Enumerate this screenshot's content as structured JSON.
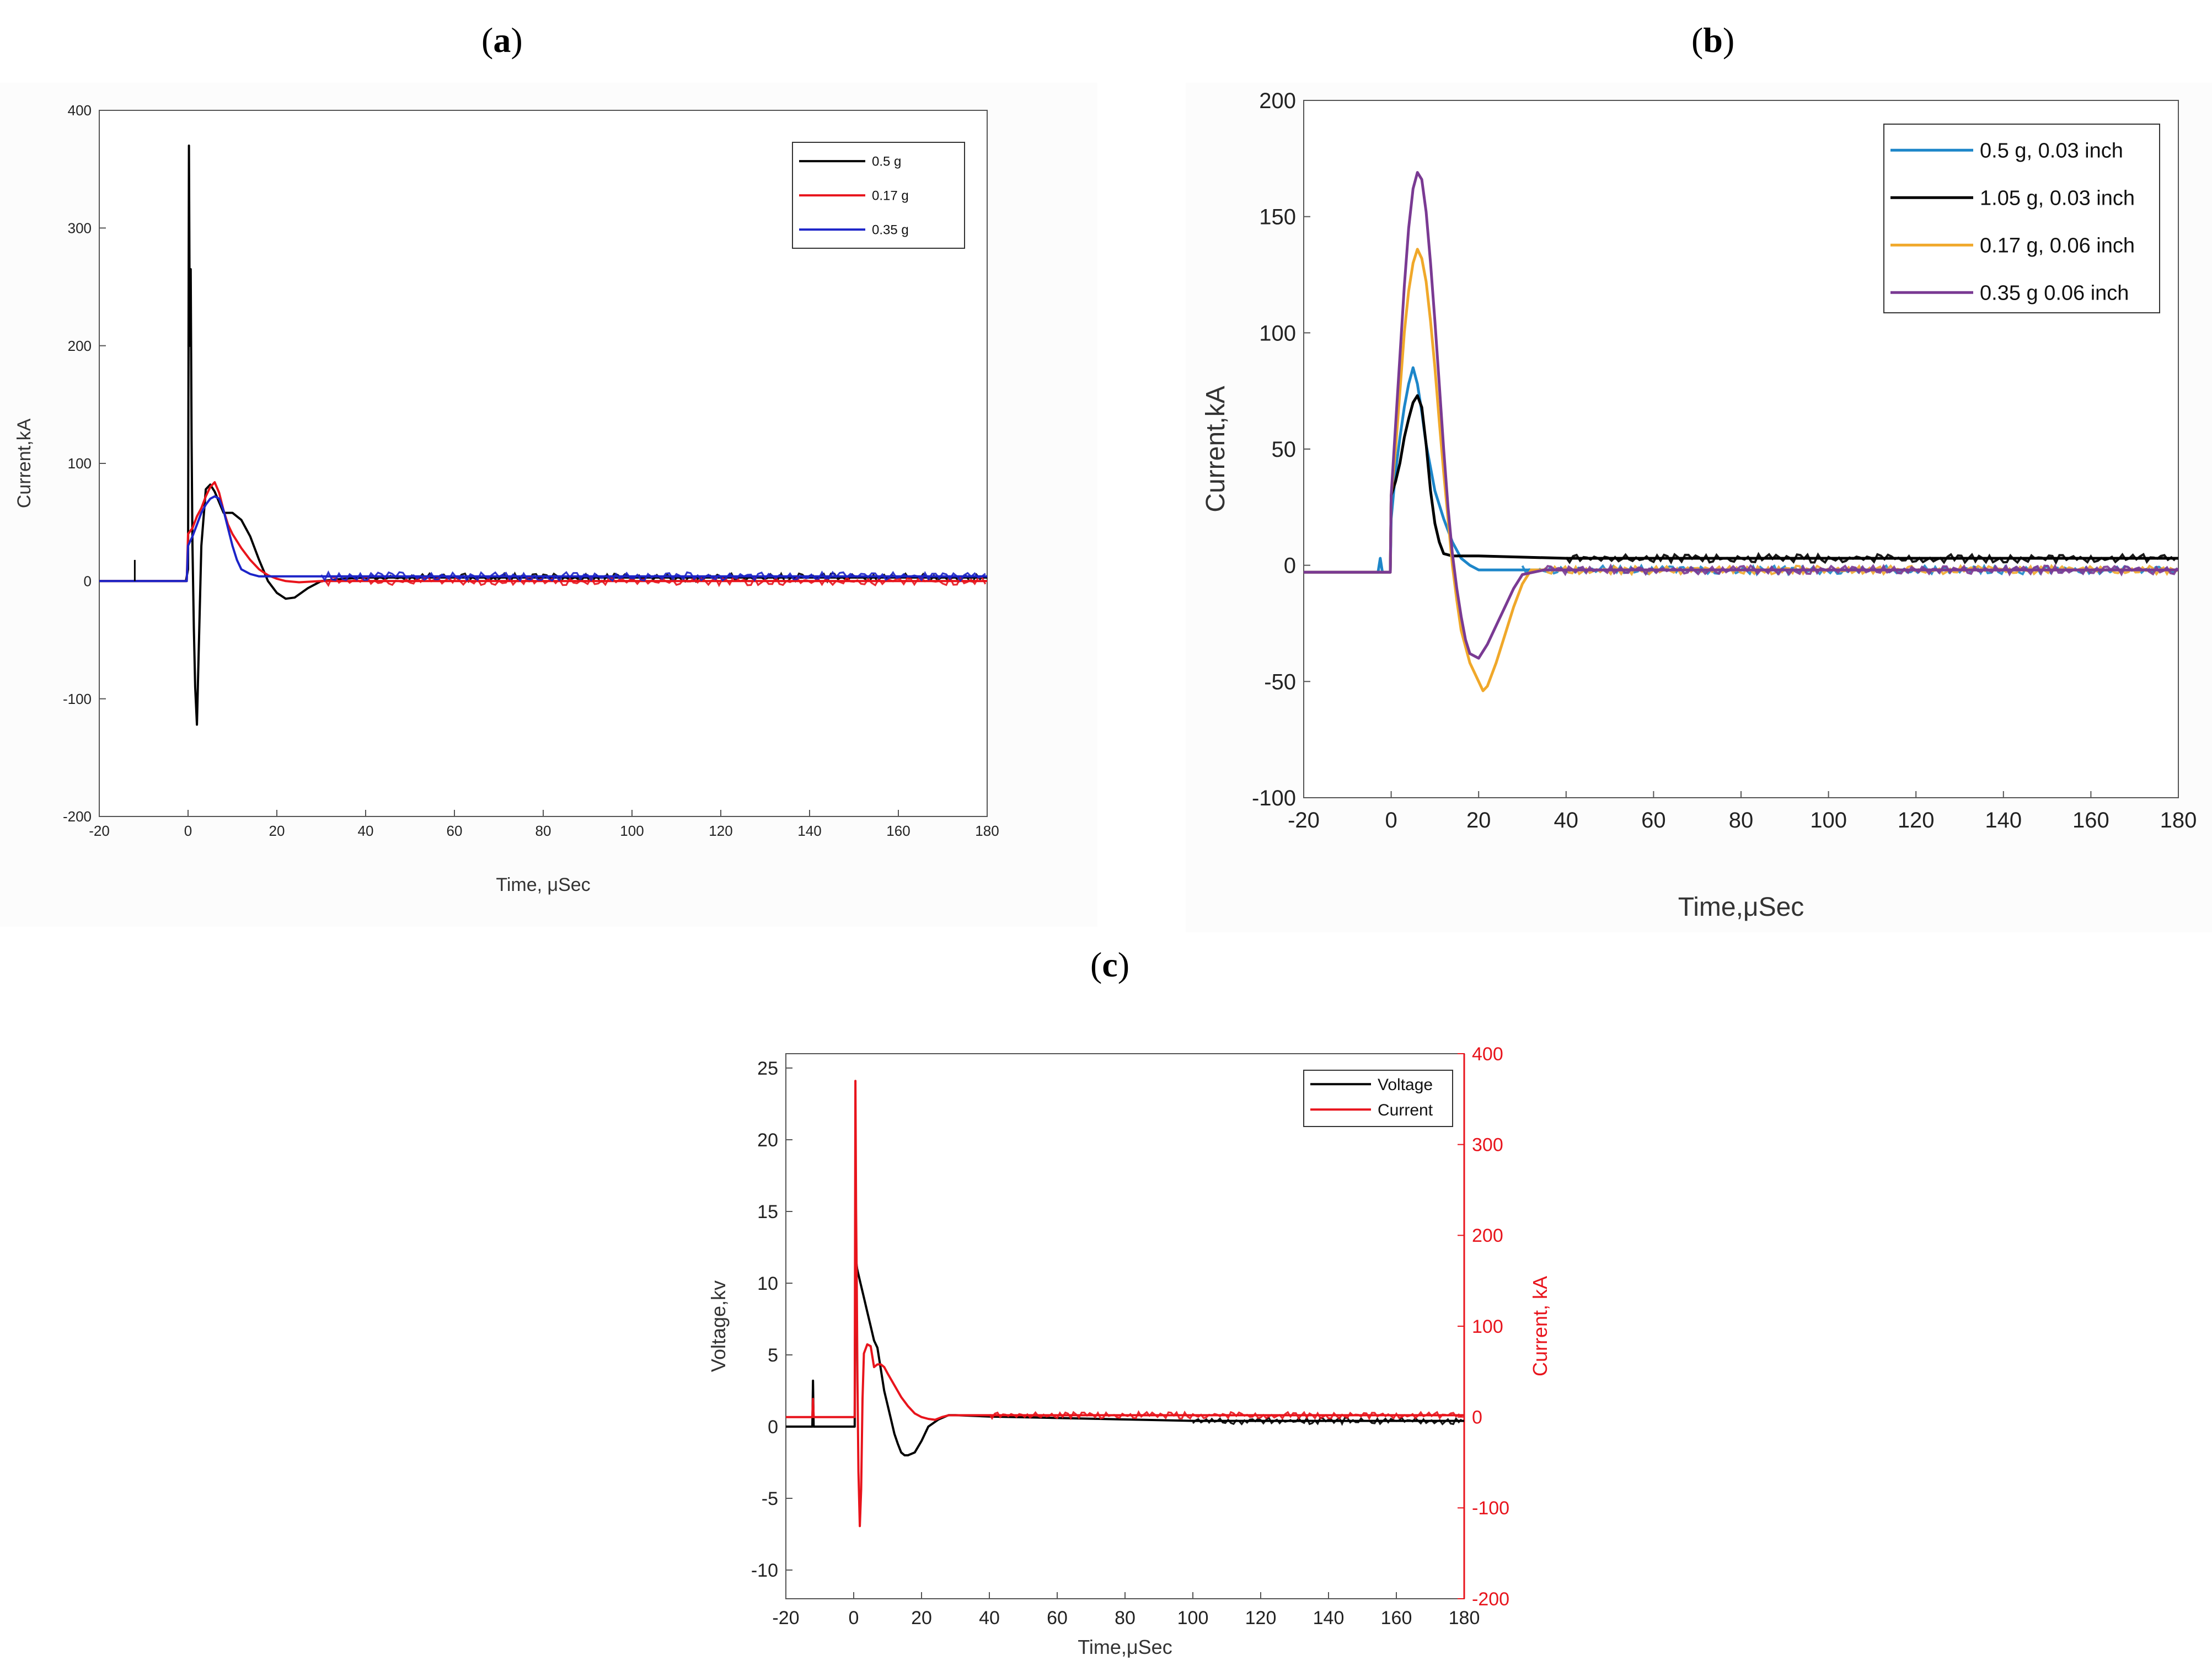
{
  "panels": {
    "a": {
      "label": "a"
    },
    "b": {
      "label": "b"
    },
    "c": {
      "label": "c"
    }
  },
  "chart_data": [
    {
      "id": "a",
      "type": "line",
      "xlabel": "Time, μSec",
      "ylabel": "Current,kA",
      "xlim": [
        -20,
        180
      ],
      "ylim": [
        -200,
        400
      ],
      "xticks": [
        -20,
        0,
        20,
        40,
        60,
        80,
        100,
        120,
        140,
        160,
        180
      ],
      "yticks": [
        -200,
        -100,
        0,
        100,
        200,
        300,
        400
      ],
      "legend_position": "top-right",
      "series": [
        {
          "name": "0.5 g",
          "color": "#000000",
          "x": [
            -20,
            -0.5,
            0,
            0.2,
            0.4,
            0.6,
            0.8,
            1.0,
            1.3,
            1.6,
            2.0,
            2.4,
            3,
            4,
            5,
            6,
            8,
            10,
            12,
            14,
            16,
            18,
            20,
            22,
            24,
            27,
            30,
            35,
            40,
            180
          ],
          "y": [
            0,
            0,
            10,
            370,
            200,
            265,
            120,
            30,
            -40,
            -90,
            -122,
            -60,
            30,
            78,
            82,
            76,
            58,
            58,
            52,
            38,
            18,
            0,
            -10,
            -15,
            -14,
            -6,
            0,
            2,
            3,
            3
          ]
        },
        {
          "name": "0.17 g",
          "color": "#e8141c",
          "x": [
            -20,
            -0.3,
            0,
            1,
            2,
            3,
            4,
            5,
            6,
            7,
            8,
            9,
            10,
            12,
            14,
            16,
            18,
            20,
            22,
            25,
            30,
            180
          ],
          "y": [
            0,
            0,
            40,
            45,
            55,
            62,
            72,
            80,
            84,
            75,
            60,
            48,
            40,
            28,
            18,
            10,
            5,
            2,
            0,
            -1,
            0,
            0
          ]
        },
        {
          "name": "0.35 g",
          "color": "#1c24c8",
          "x": [
            -20,
            -0.3,
            0,
            1,
            2,
            3,
            4,
            5,
            6,
            7,
            8,
            9,
            10,
            11,
            12,
            14,
            16,
            20,
            30,
            180
          ],
          "y": [
            0,
            0,
            30,
            38,
            48,
            58,
            65,
            70,
            72,
            70,
            60,
            45,
            30,
            18,
            10,
            6,
            4,
            4,
            4,
            4
          ]
        }
      ],
      "annotations": [
        {
          "x": -12,
          "y": 18,
          "type": "spike"
        }
      ]
    },
    {
      "id": "b",
      "type": "line",
      "xlabel": "Time,μSec",
      "ylabel": "Current,kA",
      "xlim": [
        -20,
        180
      ],
      "ylim": [
        -100,
        200
      ],
      "xticks": [
        -20,
        0,
        20,
        40,
        60,
        80,
        100,
        120,
        140,
        160,
        180
      ],
      "yticks": [
        -100,
        -50,
        0,
        50,
        100,
        150,
        200
      ],
      "legend_position": "top-right",
      "series": [
        {
          "name": "0.5 g, 0.03 inch",
          "color": "#1d86c9",
          "x": [
            -20,
            -3,
            -2.5,
            -2,
            -0.2,
            0,
            1,
            2,
            3,
            4,
            5,
            6,
            7,
            8,
            9,
            10,
            12,
            14,
            16,
            18,
            20,
            25,
            30,
            180
          ],
          "y": [
            -3,
            -3,
            3,
            -3,
            -3,
            20,
            40,
            55,
            68,
            78,
            85,
            78,
            66,
            52,
            42,
            32,
            20,
            10,
            3,
            0,
            -2,
            -2,
            -2,
            -2
          ]
        },
        {
          "name": "1.05 g, 0.03 inch",
          "color": "#000000",
          "x": [
            -20,
            -0.2,
            0,
            1,
            2,
            3,
            4,
            5,
            6,
            7,
            8,
            9,
            10,
            11,
            12,
            14,
            16,
            20,
            40,
            180
          ],
          "y": [
            -3,
            -3,
            30,
            36,
            44,
            55,
            63,
            70,
            73,
            68,
            52,
            32,
            18,
            10,
            5,
            4,
            4,
            4,
            3,
            3
          ]
        },
        {
          "name": "0.17 g, 0.06 inch",
          "color": "#f0a82a",
          "x": [
            -20,
            -0.2,
            0,
            1,
            2,
            3,
            4,
            5,
            6,
            7,
            8,
            9,
            10,
            11,
            12,
            13,
            14,
            15,
            16,
            18,
            20,
            21,
            22,
            24,
            26,
            28,
            30,
            32,
            35,
            180
          ],
          "y": [
            -3,
            -3,
            30,
            50,
            75,
            100,
            118,
            130,
            136,
            132,
            122,
            105,
            85,
            62,
            40,
            20,
            0,
            -15,
            -28,
            -42,
            -50,
            -54,
            -52,
            -42,
            -30,
            -18,
            -8,
            -2,
            -2,
            -2
          ]
        },
        {
          "name": "0.35 g 0.06 inch",
          "color": "#7a3a93",
          "x": [
            -20,
            -0.2,
            0,
            1,
            2,
            3,
            4,
            5,
            6,
            7,
            8,
            9,
            10,
            11,
            12,
            13,
            14,
            15,
            16,
            17,
            18,
            20,
            22,
            24,
            26,
            28,
            30,
            35,
            180
          ],
          "y": [
            -3,
            -3,
            30,
            60,
            90,
            120,
            145,
            162,
            169,
            166,
            152,
            130,
            105,
            78,
            50,
            25,
            5,
            -10,
            -22,
            -32,
            -38,
            -40,
            -34,
            -26,
            -18,
            -10,
            -4,
            -2,
            -2
          ]
        }
      ]
    },
    {
      "id": "c",
      "type": "line",
      "xlabel": "Time,μSec",
      "ylabel": "Voltage,kv",
      "y2label": "Current, kA",
      "xlim": [
        -20,
        180
      ],
      "ylim": [
        -12,
        26
      ],
      "y2lim": [
        -200,
        400
      ],
      "xticks": [
        -20,
        0,
        20,
        40,
        60,
        80,
        100,
        120,
        140,
        160,
        180
      ],
      "yticks": [
        -10,
        -5,
        0,
        5,
        10,
        15,
        20,
        25
      ],
      "y2ticks": [
        -200,
        -100,
        0,
        100,
        200,
        300,
        400
      ],
      "legend_position": "top-right",
      "series": [
        {
          "name": "Voltage",
          "color": "#000000",
          "axis": "left",
          "x": [
            -20,
            -12.2,
            -12,
            -11.8,
            -11.5,
            0.3,
            0.5,
            1,
            2,
            3,
            4,
            5,
            6,
            7,
            8,
            9,
            10,
            11,
            12,
            13,
            14,
            15,
            16,
            18,
            20,
            22,
            25,
            28,
            30,
            40,
            60,
            80,
            100,
            180
          ],
          "y": [
            0,
            0,
            3.2,
            0,
            0,
            0,
            12,
            11,
            10,
            9,
            8,
            7,
            6,
            5.5,
            4,
            2.5,
            1.5,
            0.5,
            -0.5,
            -1.2,
            -1.8,
            -2,
            -2,
            -1.8,
            -1,
            0,
            0.5,
            0.8,
            0.8,
            0.7,
            0.6,
            0.5,
            0.4,
            0.4
          ]
        },
        {
          "name": "Current",
          "color": "#e8141c",
          "axis": "right",
          "x": [
            -20,
            -12.2,
            -12,
            -11.8,
            -11.5,
            0.3,
            0.5,
            0.7,
            0.9,
            1.1,
            1.4,
            1.8,
            2.2,
            2.6,
            3,
            4,
            5,
            6,
            7,
            8,
            9,
            10,
            12,
            14,
            16,
            18,
            20,
            22,
            24,
            26,
            28,
            30,
            40,
            180
          ],
          "y": [
            0,
            0,
            20,
            0,
            0,
            0,
            370,
            230,
            150,
            40,
            -60,
            -120,
            -80,
            20,
            70,
            80,
            78,
            55,
            58,
            58,
            55,
            48,
            35,
            22,
            12,
            4,
            0,
            -2,
            -3,
            0,
            2,
            2,
            2,
            2
          ]
        }
      ]
    }
  ]
}
